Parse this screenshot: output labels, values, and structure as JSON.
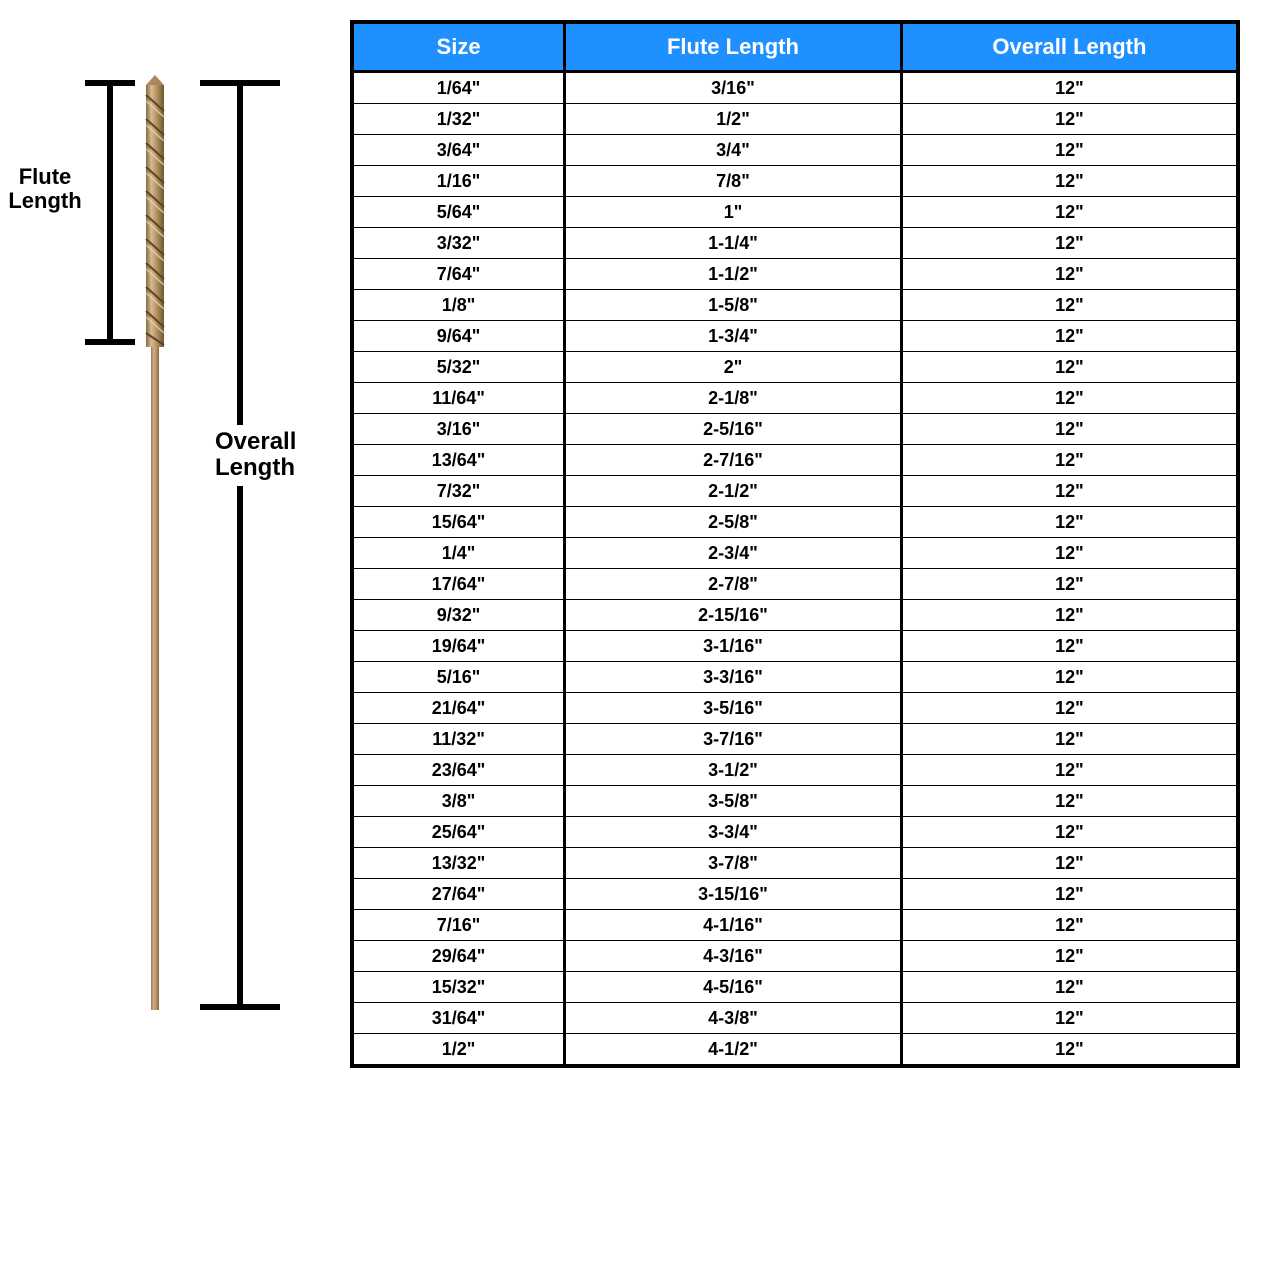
{
  "labels": {
    "flute_line1": "Flute",
    "flute_line2": "Length",
    "overall_line1": "Overall",
    "overall_line2": "Length"
  },
  "table": {
    "header_bg": "#1e90ff",
    "header_color": "#ffffff",
    "border_color": "#000000",
    "columns": [
      "Size",
      "Flute Length",
      "Overall Length"
    ],
    "rows": [
      [
        "1/64\"",
        "3/16\"",
        "12\""
      ],
      [
        "1/32\"",
        "1/2\"",
        "12\""
      ],
      [
        "3/64\"",
        "3/4\"",
        "12\""
      ],
      [
        "1/16\"",
        "7/8\"",
        "12\""
      ],
      [
        "5/64\"",
        "1\"",
        "12\""
      ],
      [
        "3/32\"",
        "1-1/4\"",
        "12\""
      ],
      [
        "7/64\"",
        "1-1/2\"",
        "12\""
      ],
      [
        "1/8\"",
        "1-5/8\"",
        "12\""
      ],
      [
        "9/64\"",
        "1-3/4\"",
        "12\""
      ],
      [
        "5/32\"",
        "2\"",
        "12\""
      ],
      [
        "11/64\"",
        "2-1/8\"",
        "12\""
      ],
      [
        "3/16\"",
        "2-5/16\"",
        "12\""
      ],
      [
        "13/64\"",
        "2-7/16\"",
        "12\""
      ],
      [
        "7/32\"",
        "2-1/2\"",
        "12\""
      ],
      [
        "15/64\"",
        "2-5/8\"",
        "12\""
      ],
      [
        "1/4\"",
        "2-3/4\"",
        "12\""
      ],
      [
        "17/64\"",
        "2-7/8\"",
        "12\""
      ],
      [
        "9/32\"",
        "2-15/16\"",
        "12\""
      ],
      [
        "19/64\"",
        "3-1/16\"",
        "12\""
      ],
      [
        "5/16\"",
        "3-3/16\"",
        "12\""
      ],
      [
        "21/64\"",
        "3-5/16\"",
        "12\""
      ],
      [
        "11/32\"",
        "3-7/16\"",
        "12\""
      ],
      [
        "23/64\"",
        "3-1/2\"",
        "12\""
      ],
      [
        "3/8\"",
        "3-5/8\"",
        "12\""
      ],
      [
        "25/64\"",
        "3-3/4\"",
        "12\""
      ],
      [
        "13/32\"",
        "3-7/8\"",
        "12\""
      ],
      [
        "27/64\"",
        "3-15/16\"",
        "12\""
      ],
      [
        "7/16\"",
        "4-1/16\"",
        "12\""
      ],
      [
        "29/64\"",
        "4-3/16\"",
        "12\""
      ],
      [
        "15/32\"",
        "4-5/16\"",
        "12\""
      ],
      [
        "31/64\"",
        "4-3/8\"",
        "12\""
      ],
      [
        "1/2\"",
        "4-1/2\"",
        "12\""
      ]
    ]
  },
  "drill": {
    "flute_color_light": "#c9a979",
    "flute_color_dark": "#8a6a3f",
    "shank_color": "#b89666",
    "tip_color": "#a8885c"
  }
}
